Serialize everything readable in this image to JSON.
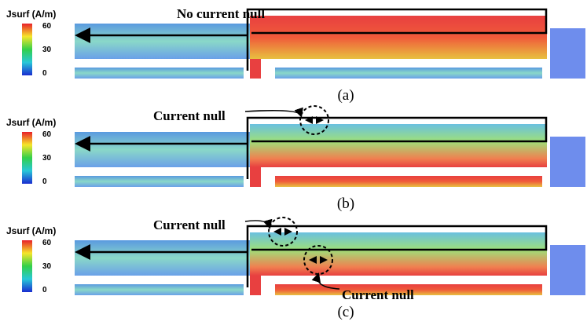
{
  "panels": [
    {
      "legend_title": "Jsurf (A/m)",
      "legend_ticks": [
        60,
        30,
        0
      ],
      "annotations": [
        "No current null"
      ],
      "caption": "(a)"
    },
    {
      "legend_title": "Jsurf (A/m)",
      "legend_ticks": [
        60,
        30,
        0
      ],
      "annotations": [
        "Current null"
      ],
      "caption": "(b)"
    },
    {
      "legend_title": "Jsurf (A/m)",
      "legend_ticks": [
        60,
        30,
        0
      ],
      "annotations": [
        "Current null",
        "Current null"
      ],
      "caption": "(c)"
    }
  ]
}
